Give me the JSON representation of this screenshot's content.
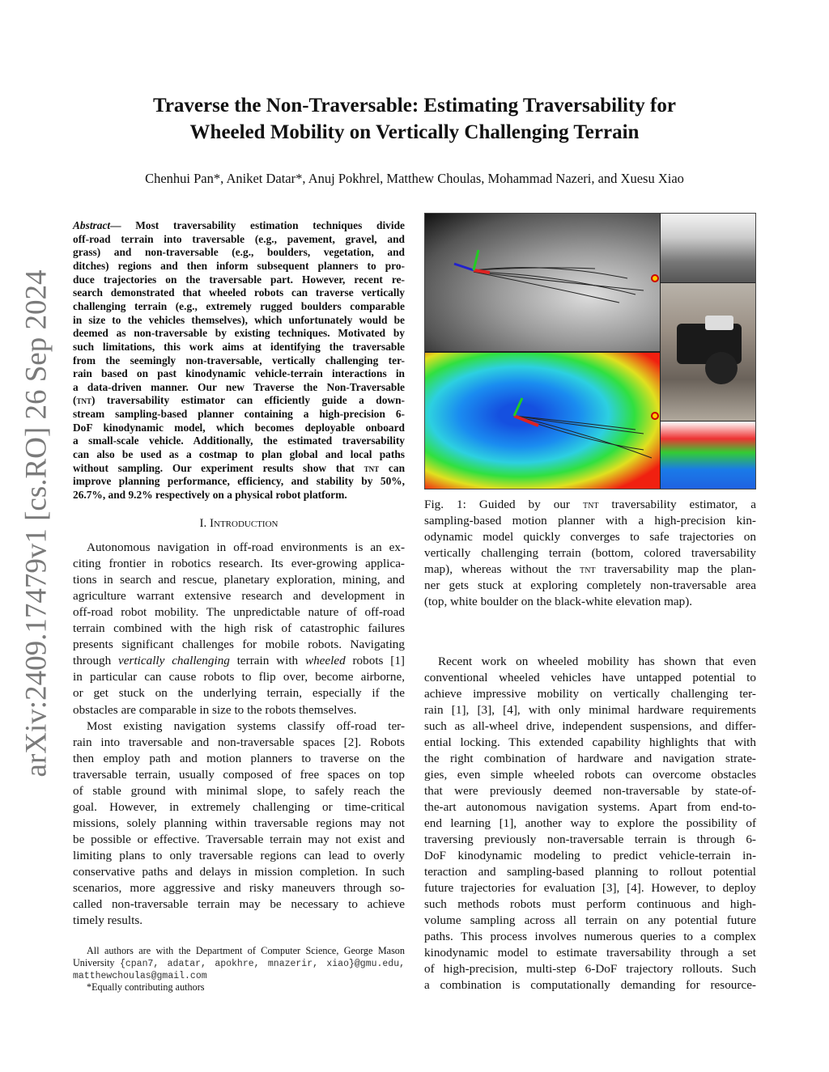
{
  "sidebar_id": "arXiv:2409.17479v1  [cs.RO]  26 Sep 2024",
  "title": [
    "Traverse the Non-Traversable: Estimating Traversability for",
    "Wheeled Mobility on Vertically Challenging Terrain"
  ],
  "authors": "Chenhui Pan*, Aniket Datar*, Anuj Pokhrel, Matthew Choulas, Mohammad Nazeri, and Xuesu Xiao",
  "abstract": [
    [
      [
        "Abstract",
        "it"
      ],
      [
        "— Most traversability estimation techniques divide",
        ""
      ]
    ],
    "off-road terrain into traversable (e.g., pavement, gravel, and",
    "grass) and non-traversable (e.g., boulders, vegetation, and",
    "ditches) regions and then inform subsequent planners to pro-",
    "duce trajectories on the traversable part. However, recent re-",
    "search demonstrated that wheeled robots can traverse vertically",
    "challenging terrain (e.g., extremely rugged boulders comparable",
    "in size to the vehicles themselves), which unfortunately would be",
    "deemed as non-traversable by existing techniques. Motivated by",
    "such limitations, this work aims at identifying the traversable",
    "from the seemingly non-traversable, vertically challenging ter-",
    "rain based on past kinodynamic vehicle-terrain interactions in",
    "a data-driven manner. Our new Traverse the Non-Traversable",
    [
      [
        "(",
        ""
      ],
      [
        "tnt",
        "sc"
      ],
      [
        ") traversability estimator can efficiently guide a down-",
        ""
      ]
    ],
    "stream sampling-based planner containing a high-precision 6-",
    "DoF kinodynamic model, which becomes deployable onboard",
    "a small-scale vehicle. Additionally, the estimated traversability",
    "can also be used as a costmap to plan global and local paths",
    [
      [
        "without sampling. Our experiment results show that ",
        ""
      ],
      [
        "tnt",
        "sc"
      ],
      [
        " can",
        ""
      ]
    ],
    "improve planning performance, efficiency, and stability by 50%,",
    "26.7%, and 9.2% respectively on a physical robot platform."
  ],
  "section_heading": "I. Introduction",
  "intro_left": [
    "Autonomous navigation in off-road environments is an ex-",
    "citing frontier in robotics research. Its ever-growing applica-",
    "tions in search and rescue, planetary exploration, mining, and",
    "agriculture warrant extensive research and development in",
    "off-road robot mobility. The unpredictable nature of off-road",
    "terrain combined with the high risk of catastrophic failures",
    "presents significant challenges for mobile robots. Navigating",
    [
      [
        "through ",
        ""
      ],
      [
        "vertically challenging",
        "it"
      ],
      [
        " terrain with ",
        ""
      ],
      [
        "wheeled",
        "it"
      ],
      [
        " robots [1]",
        ""
      ]
    ],
    "in particular can cause robots to flip over, become airborne,",
    "or get stuck on the underlying terrain, especially if the",
    "obstacles are comparable in size to the robots themselves.",
    "Most existing navigation systems classify off-road ter-",
    "rain into traversable and non-traversable spaces [2]. Robots",
    "then employ path and motion planners to traverse on the",
    "traversable terrain, usually composed of free spaces on top",
    "of stable ground with minimal slope, to safely reach the",
    "goal. However, in extremely challenging or time-critical",
    "missions, solely planning within traversable regions may not",
    "be possible or effective. Traversable terrain may not exist and",
    "limiting plans to only traversable regions can lead to overly",
    "conservative paths and delays in mission completion. In such",
    "scenarios, more aggressive and risky maneuvers through so-",
    "called non-traversable terrain may be necessary to achieve",
    "timely results."
  ],
  "footnote": [
    "All authors are with the Department of Computer Science, George Mason",
    [
      [
        "University  ",
        ""
      ],
      [
        "{cpan7, adatar, apokhre, mnazerir, xiao}@gmu.edu,",
        "mono"
      ]
    ],
    [
      [
        "matthewchoulas@gmail.com",
        "mono"
      ]
    ],
    "*Equally contributing authors"
  ],
  "caption": [
    [
      [
        "Fig. 1: Guided by our ",
        ""
      ],
      [
        "tnt",
        "sc"
      ],
      [
        " traversability estimator, a",
        ""
      ]
    ],
    "sampling-based motion planner with a high-precision kin-",
    "odynamic model quickly converges to safe trajectories on",
    "vertically challenging terrain (bottom, colored traversability",
    [
      [
        "map), whereas without the ",
        ""
      ],
      [
        "tnt",
        "sc"
      ],
      [
        " traversability map the plan-",
        ""
      ]
    ],
    "ner gets stuck at exploring completely non-traversable area",
    "(top, white boulder on the black-white elevation map)."
  ],
  "intro_right": [
    "Recent work on wheeled mobility has shown that even",
    "conventional wheeled vehicles have untapped potential to",
    "achieve impressive mobility on vertically challenging ter-",
    "rain [1], [3], [4], with only minimal hardware requirements",
    "such as all-wheel drive, independent suspensions, and differ-",
    "ential locking. This extended capability highlights that with",
    "the right combination of hardware and navigation strate-",
    "gies, even simple wheeled robots can overcome obstacles",
    "that were previously deemed non-traversable by state-of-",
    "the-art autonomous navigation systems. Apart from end-to-",
    "end learning [1], another way to explore the possibility of",
    "traversing previously non-traversable terrain is through 6-",
    "DoF kinodynamic modeling to predict vehicle-terrain in-",
    "teraction and sampling-based planning to rollout potential",
    "future trajectories for evaluation [3], [4]. However, to deploy",
    "such methods robots must perform continuous and high-",
    "volume sampling across all terrain on any potential future",
    "paths. This process involves numerous queries to a complex",
    "kinodynamic model to estimate traversability through a set",
    "of high-precision, multi-step 6-DoF trajectory rollouts. Such",
    "a combination is computationally demanding for resource-"
  ]
}
